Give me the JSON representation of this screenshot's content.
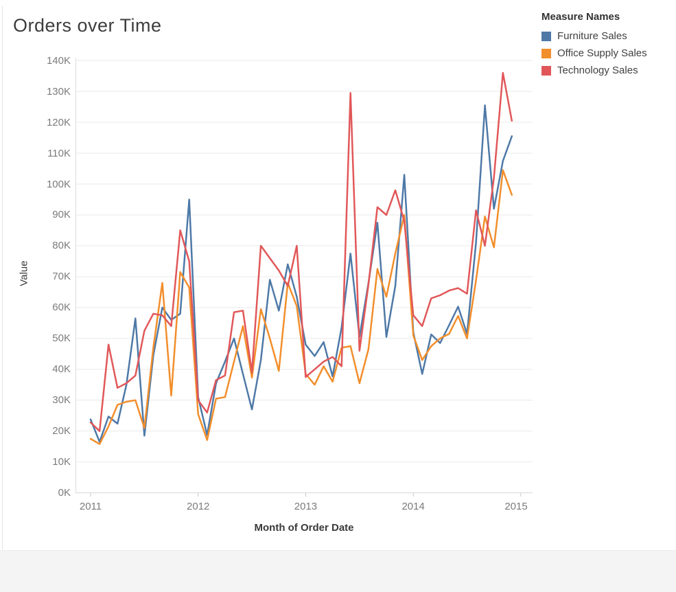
{
  "title": "Orders over Time",
  "legend": {
    "title": "Measure Names"
  },
  "footer": {
    "visible": true,
    "color": "#f4f4f4"
  },
  "chart_data": {
    "type": "line",
    "value_unit": "thousands",
    "x": [
      "2011-01",
      "2011-02",
      "2011-03",
      "2011-04",
      "2011-05",
      "2011-06",
      "2011-07",
      "2011-08",
      "2011-09",
      "2011-10",
      "2011-11",
      "2011-12",
      "2012-01",
      "2012-02",
      "2012-03",
      "2012-04",
      "2012-05",
      "2012-06",
      "2012-07",
      "2012-08",
      "2012-09",
      "2012-10",
      "2012-11",
      "2012-12",
      "2013-01",
      "2013-02",
      "2013-03",
      "2013-04",
      "2013-05",
      "2013-06",
      "2013-07",
      "2013-08",
      "2013-09",
      "2013-10",
      "2013-11",
      "2013-12",
      "2014-01",
      "2014-02",
      "2014-03",
      "2014-04",
      "2014-05",
      "2014-06",
      "2014-07",
      "2014-08",
      "2014-09",
      "2014-10",
      "2014-11",
      "2014-12"
    ],
    "series": [
      {
        "name": "Furniture Sales",
        "color": "#4e79a7",
        "values": [
          23.8,
          16.5,
          24.7,
          22.4,
          35,
          56.5,
          18.5,
          44.5,
          60,
          56,
          58,
          95,
          31,
          18.7,
          35.5,
          42.5,
          50,
          38.5,
          27,
          43,
          69,
          59,
          74,
          63.5,
          48,
          44.3,
          48.8,
          37.7,
          53.5,
          77.5,
          50.5,
          68,
          87.5,
          50.5,
          67,
          103,
          52,
          38.5,
          51.3,
          48.5,
          54.3,
          60.3,
          51.5,
          81,
          125.5,
          92,
          107.5,
          115.5
        ]
      },
      {
        "name": "Office Supply Sales",
        "color": "#f28e2b",
        "values": [
          17.5,
          15.8,
          21.5,
          28.5,
          29.5,
          30,
          21,
          47,
          68,
          31.5,
          71.5,
          66.5,
          25.5,
          17.1,
          30.5,
          31,
          42.5,
          54,
          37.3,
          59.5,
          50,
          39.5,
          68,
          60.5,
          38.5,
          35,
          41,
          36,
          47,
          47.5,
          35.5,
          46.5,
          72.5,
          63.5,
          77.5,
          90,
          51,
          43,
          47.5,
          50,
          51.5,
          57.3,
          50,
          68.8,
          89.5,
          79.5,
          104.5,
          96.5
        ]
      },
      {
        "name": "Technology Sales",
        "color": "#e15759",
        "values": [
          22.8,
          20,
          48,
          34,
          35.5,
          38,
          52.5,
          58,
          57.5,
          54,
          85,
          75,
          30,
          26,
          36.5,
          38,
          58.5,
          59,
          39,
          80,
          76,
          72,
          67,
          80,
          37.5,
          40,
          42.5,
          44,
          41,
          129.5,
          46,
          67.5,
          92.5,
          90,
          98,
          88,
          57.5,
          54,
          63,
          64,
          65.5,
          66.3,
          64.5,
          91.5,
          80,
          102,
          136,
          120.5
        ]
      }
    ],
    "title": "Orders over Time",
    "xlabel": "Month of Order Date",
    "ylabel": "Value",
    "ylim": [
      0,
      140
    ],
    "y_tick_labels": [
      "0K",
      "10K",
      "20K",
      "30K",
      "40K",
      "50K",
      "60K",
      "70K",
      "80K",
      "90K",
      "100K",
      "110K",
      "120K",
      "130K",
      "140K"
    ],
    "x_tick_labels": [
      "2011",
      "2012",
      "2013",
      "2014",
      "2015"
    ],
    "grid": "horizontal",
    "legend_position": "top-right"
  }
}
